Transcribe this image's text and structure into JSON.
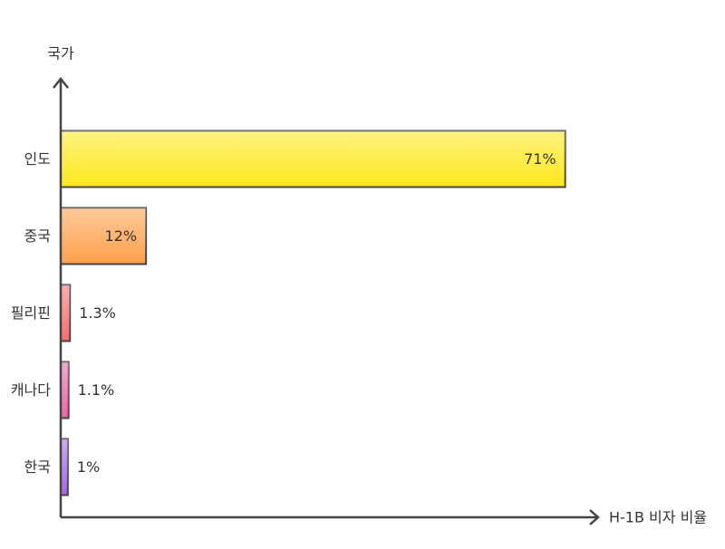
{
  "chart_data": {
    "type": "bar",
    "orientation": "horizontal",
    "x_label": "H-1B 비자 비율",
    "y_label": "국가",
    "categories": [
      "인도",
      "중국",
      "필리핀",
      "캐나다",
      "한국"
    ],
    "values": [
      71,
      12,
      1.3,
      1.1,
      1
    ],
    "value_labels": [
      "71%",
      "12%",
      "1.3%",
      "1.1%",
      "1%"
    ],
    "colors": [
      "#ffe81a",
      "#ffa04a",
      "#ff6b6b",
      "#f062a8",
      "#a865f0"
    ],
    "xlim": [
      0,
      75
    ]
  }
}
